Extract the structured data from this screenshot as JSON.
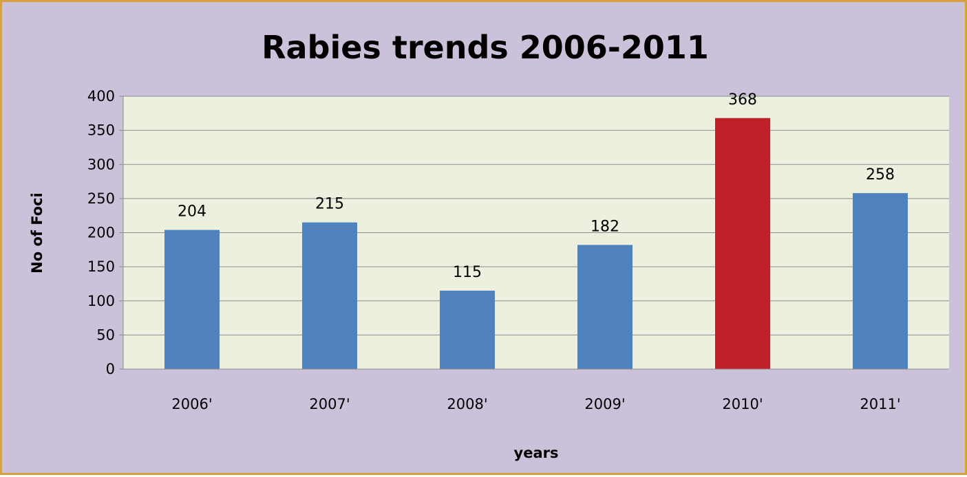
{
  "chart_data": {
    "type": "bar",
    "title": "Rabies trends 2006-2011",
    "xlabel": "years",
    "ylabel": "No of Foci",
    "categories": [
      "2006'",
      "2007'",
      "2008'",
      "2009'",
      "2010'",
      "2011'"
    ],
    "values": [
      204,
      215,
      115,
      182,
      368,
      258
    ],
    "data_labels": [
      "204",
      "215",
      "115",
      "182",
      "368",
      "258"
    ],
    "ylim": [
      0,
      400
    ],
    "yticks": [
      0,
      50,
      100,
      150,
      200,
      250,
      300,
      350,
      400
    ],
    "grid": true,
    "legend": "none",
    "colors": {
      "background": "#ccc1da",
      "plot_area": "#ebf1de",
      "border": "#d9a040",
      "bar": "#4f81bd",
      "highlight_bar": "#c0202a",
      "gridline": "#8c8c8c"
    },
    "highlight_category": "2010'"
  }
}
